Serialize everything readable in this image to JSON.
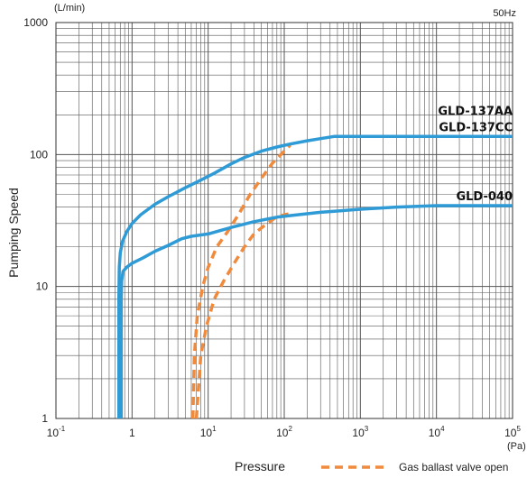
{
  "chart_data": {
    "type": "line",
    "title": "",
    "xlabel": "Pressure",
    "ylabel": "Pumping Speed",
    "x_unit": "(Pa)",
    "y_unit": "(L/min)",
    "frequency": "50Hz",
    "xscale": "log",
    "yscale": "log",
    "xlim": [
      0.1,
      100000
    ],
    "ylim": [
      1,
      1000
    ],
    "grid": true,
    "legend_position": "bottom-right",
    "x_ticks": [
      {
        "base": "10",
        "exp": "-1"
      },
      {
        "base": "1",
        "exp": ""
      },
      {
        "base": "10",
        "exp": "1"
      },
      {
        "base": "10",
        "exp": "2"
      },
      {
        "base": "10",
        "exp": "3"
      },
      {
        "base": "10",
        "exp": "4"
      },
      {
        "base": "10",
        "exp": "5"
      }
    ],
    "y_ticks": [
      "1",
      "10",
      "100",
      "1000"
    ],
    "colors": {
      "series": "#2f9bd6",
      "gas_ballast": "#f08a3c",
      "grid": "#555555"
    },
    "series": [
      {
        "name": "GLD-137AA / GLD-137CC",
        "label_lines": [
          "GLD-137AA",
          "GLD-137CC"
        ],
        "style": "solid",
        "x": [
          0.67,
          0.67,
          0.68,
          0.7,
          0.75,
          0.85,
          1.0,
          1.3,
          2.0,
          3.0,
          5.0,
          8.0,
          12,
          20,
          30,
          50,
          80,
          120,
          200,
          300,
          450,
          600,
          1000,
          3000,
          10000,
          100000
        ],
        "y": [
          1,
          8,
          14,
          18,
          22,
          26,
          30,
          35,
          42,
          48,
          56,
          64,
          72,
          85,
          95,
          106,
          114,
          120,
          127,
          132,
          137,
          137,
          137,
          137,
          137,
          137
        ]
      },
      {
        "name": "GLD-040",
        "label_lines": [
          "GLD-040"
        ],
        "style": "solid",
        "x": [
          0.72,
          0.72,
          0.73,
          0.76,
          0.85,
          1.0,
          1.4,
          2.0,
          3.0,
          4.5,
          6.0,
          10,
          20,
          40,
          80,
          150,
          300,
          1000,
          3000,
          10000,
          100000
        ],
        "y": [
          1,
          8,
          11,
          13,
          14,
          15,
          16.5,
          18.5,
          20.5,
          23,
          24,
          25,
          28,
          31,
          33.5,
          35,
          36.5,
          38.5,
          40,
          41,
          41
        ]
      }
    ],
    "gas_ballast": {
      "label": "Gas ballast valve open",
      "style": "dashed",
      "curves": [
        {
          "x": [
            6.3,
            6.6,
            7.2,
            8.5,
            10,
            13,
            18,
            25,
            35,
            50,
            70,
            100,
            120
          ],
          "y": [
            1,
            3,
            6,
            10,
            14,
            20,
            26,
            35,
            49,
            66,
            86,
            106,
            118
          ]
        },
        {
          "x": [
            7.0,
            8.0,
            9.5,
            12,
            16,
            22,
            30,
            40,
            55,
            75,
            100,
            130
          ],
          "y": [
            1,
            3,
            5,
            8,
            11,
            15,
            20,
            25,
            29,
            33,
            35,
            36
          ]
        }
      ]
    }
  }
}
